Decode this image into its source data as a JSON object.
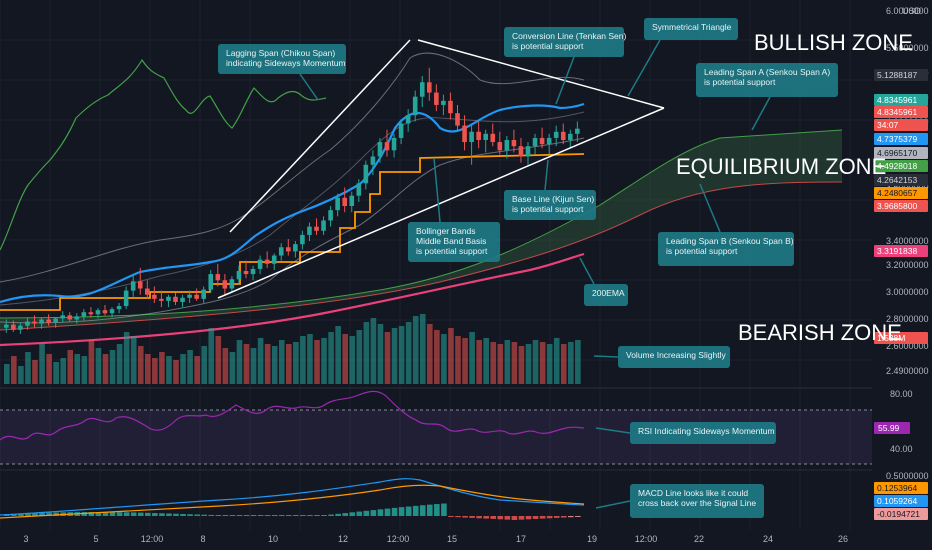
{
  "currency_label": "USD",
  "price_axis": [
    "6.0000000",
    "5.5000000",
    "5.0000000",
    "4.5000000",
    "4.0000000",
    "3.6000000",
    "3.4000000",
    "3.2000000",
    "3.0000000",
    "2.8000000",
    "2.6000000",
    "2.4900000"
  ],
  "rsi_axis": [
    "80.00",
    "40.00"
  ],
  "macd_axis": [
    "0.5000000"
  ],
  "price_badges": [
    {
      "text": "5.1288187",
      "bg": "#2a2e39",
      "fg": "#d1d4dc"
    },
    {
      "text": "4.8345961",
      "bg": "#26a69a",
      "fg": "#ffffff"
    },
    {
      "text": "4.8345961",
      "bg": "#ef5350",
      "fg": "#ffffff"
    },
    {
      "text": "34:07",
      "bg": "#ef5350",
      "fg": "#ffffff"
    },
    {
      "text": "4.7375379",
      "bg": "#2196f3",
      "fg": "#ffffff"
    },
    {
      "text": "4.6965170",
      "bg": "#b2b5be",
      "fg": "#131722"
    },
    {
      "text": "4.4928018",
      "bg": "#43a047",
      "fg": "#ffffff"
    },
    {
      "text": "4.2642153",
      "bg": "#2a2e39",
      "fg": "#d1d4dc"
    },
    {
      "text": "4.2480657",
      "bg": "#ff9800",
      "fg": "#131722"
    },
    {
      "text": "3.9685800",
      "bg": "#ef5350",
      "fg": "#ffffff"
    },
    {
      "text": "3.3191838",
      "bg": "#ec407a",
      "fg": "#ffffff"
    },
    {
      "text": "1.538M",
      "bg": "#ef5350",
      "fg": "#ffffff"
    }
  ],
  "rsi_badge": {
    "text": "55.99",
    "bg": "#9c27b0",
    "fg": "#ffffff"
  },
  "macd_badges": [
    {
      "text": "0.1253964",
      "bg": "#ff9800",
      "fg": "#131722"
    },
    {
      "text": "0.1059264",
      "bg": "#2196f3",
      "fg": "#ffffff"
    },
    {
      "text": "-0.0194721",
      "bg": "#ef9a9a",
      "fg": "#131722"
    }
  ],
  "time_axis": [
    "3",
    "5",
    "12:00",
    "8",
    "10",
    "12",
    "12:00",
    "15",
    "17",
    "19",
    "12:00",
    "22",
    "24",
    "26"
  ],
  "zones": {
    "bullish": "BULLISH ZONE",
    "equilibrium": "EQUILIBRIUM ZONE",
    "bearish": "BEARISH ZONE"
  },
  "callouts": [
    {
      "lines": [
        "Lagging Span (Chikou Span)",
        "indicating Sideways Momentum"
      ]
    },
    {
      "lines": [
        "Conversion Line (Tenkan Sen)",
        "is potential support"
      ]
    },
    {
      "lines": [
        "Symmetrical Triangle"
      ]
    },
    {
      "lines": [
        "Leading Span A (Senkou Span A)",
        "is potential support"
      ]
    },
    {
      "lines": [
        "Base Line (Kijun Sen)",
        "is potential support"
      ]
    },
    {
      "lines": [
        "Bollinger Bands",
        "Middle Band Basis",
        "is potential support"
      ]
    },
    {
      "lines": [
        "Leading Span B (Senkou Span B)",
        "is potential support"
      ]
    },
    {
      "lines": [
        "200EMA"
      ]
    },
    {
      "lines": [
        "Volume Increasing Slightly"
      ]
    },
    {
      "lines": [
        "RSI Indicating Sideways Momentum"
      ]
    },
    {
      "lines": [
        "MACD Line looks like it could",
        "cross back over the Signal Line"
      ]
    }
  ],
  "colors": {
    "up": "#26a69a",
    "down": "#ef5350",
    "tenkan": "#2196f3",
    "kijun": "#ff9800",
    "ema200": "#ec407a",
    "chikou": "#43a047",
    "rsi": "#9c27b0",
    "callout": "#1e7a85"
  },
  "chart_data": {
    "type": "candlestick",
    "indicators": [
      "Ichimoku Cloud",
      "Bollinger Bands",
      "200 EMA",
      "Volume",
      "RSI",
      "MACD"
    ],
    "ohlc": [
      [
        2.9,
        2.98,
        2.85,
        2.93
      ],
      [
        2.93,
        2.97,
        2.86,
        2.88
      ],
      [
        2.88,
        2.95,
        2.84,
        2.92
      ],
      [
        2.92,
        3.0,
        2.88,
        2.96
      ],
      [
        2.96,
        3.02,
        2.9,
        2.94
      ],
      [
        2.94,
        3.0,
        2.89,
        2.98
      ],
      [
        2.98,
        3.03,
        2.92,
        2.95
      ],
      [
        2.95,
        3.0,
        2.9,
        2.99
      ],
      [
        2.99,
        3.06,
        2.95,
        3.02
      ],
      [
        3.02,
        3.05,
        2.96,
        2.98
      ],
      [
        2.98,
        3.04,
        2.94,
        3.01
      ],
      [
        3.01,
        3.08,
        2.97,
        3.05
      ],
      [
        3.05,
        3.1,
        3.0,
        3.03
      ],
      [
        3.03,
        3.09,
        2.99,
        3.07
      ],
      [
        3.07,
        3.12,
        3.02,
        3.04
      ],
      [
        3.04,
        3.1,
        3.0,
        3.08
      ],
      [
        3.08,
        3.14,
        3.04,
        3.11
      ],
      [
        3.11,
        3.3,
        3.08,
        3.26
      ],
      [
        3.26,
        3.42,
        3.2,
        3.35
      ],
      [
        3.35,
        3.48,
        3.22,
        3.28
      ],
      [
        3.28,
        3.36,
        3.18,
        3.22
      ],
      [
        3.22,
        3.3,
        3.14,
        3.18
      ],
      [
        3.18,
        3.26,
        3.1,
        3.16
      ],
      [
        3.16,
        3.22,
        3.1,
        3.2
      ],
      [
        3.2,
        3.24,
        3.12,
        3.15
      ],
      [
        3.15,
        3.22,
        3.1,
        3.19
      ],
      [
        3.19,
        3.26,
        3.14,
        3.22
      ],
      [
        3.22,
        3.28,
        3.16,
        3.18
      ],
      [
        3.18,
        3.3,
        3.14,
        3.27
      ],
      [
        3.27,
        3.46,
        3.24,
        3.42
      ],
      [
        3.42,
        3.52,
        3.3,
        3.36
      ],
      [
        3.36,
        3.42,
        3.22,
        3.28
      ],
      [
        3.28,
        3.4,
        3.24,
        3.37
      ],
      [
        3.37,
        3.5,
        3.32,
        3.45
      ],
      [
        3.45,
        3.55,
        3.38,
        3.42
      ],
      [
        3.42,
        3.5,
        3.36,
        3.47
      ],
      [
        3.47,
        3.6,
        3.42,
        3.56
      ],
      [
        3.56,
        3.64,
        3.48,
        3.52
      ],
      [
        3.52,
        3.62,
        3.46,
        3.6
      ],
      [
        3.6,
        3.72,
        3.55,
        3.68
      ],
      [
        3.68,
        3.76,
        3.6,
        3.64
      ],
      [
        3.64,
        3.74,
        3.58,
        3.71
      ],
      [
        3.71,
        3.84,
        3.66,
        3.8
      ],
      [
        3.8,
        3.92,
        3.74,
        3.88
      ],
      [
        3.88,
        3.96,
        3.8,
        3.84
      ],
      [
        3.84,
        3.98,
        3.8,
        3.94
      ],
      [
        3.94,
        4.08,
        3.88,
        4.04
      ],
      [
        4.04,
        4.2,
        3.98,
        4.16
      ],
      [
        4.16,
        4.26,
        4.02,
        4.08
      ],
      [
        4.08,
        4.22,
        4.02,
        4.18
      ],
      [
        4.18,
        4.34,
        4.12,
        4.3
      ],
      [
        4.3,
        4.52,
        4.24,
        4.48
      ],
      [
        4.48,
        4.62,
        4.38,
        4.56
      ],
      [
        4.56,
        4.74,
        4.5,
        4.7
      ],
      [
        4.7,
        4.82,
        4.56,
        4.62
      ],
      [
        4.62,
        4.78,
        4.55,
        4.74
      ],
      [
        4.74,
        4.92,
        4.68,
        4.88
      ],
      [
        4.88,
        5.02,
        4.8,
        4.96
      ],
      [
        4.96,
        5.2,
        4.9,
        5.14
      ],
      [
        5.14,
        5.34,
        5.04,
        5.28
      ],
      [
        5.28,
        5.42,
        5.1,
        5.18
      ],
      [
        5.18,
        5.26,
        5.0,
        5.06
      ],
      [
        5.06,
        5.16,
        4.96,
        5.1
      ],
      [
        5.1,
        5.18,
        4.92,
        4.98
      ],
      [
        4.98,
        5.06,
        4.8,
        4.86
      ],
      [
        4.86,
        4.96,
        4.62,
        4.7
      ],
      [
        4.7,
        4.86,
        4.48,
        4.8
      ],
      [
        4.8,
        4.9,
        4.64,
        4.72
      ],
      [
        4.72,
        4.82,
        4.6,
        4.78
      ],
      [
        4.78,
        4.88,
        4.66,
        4.7
      ],
      [
        4.7,
        4.8,
        4.58,
        4.62
      ],
      [
        4.62,
        4.76,
        4.54,
        4.72
      ],
      [
        4.72,
        4.82,
        4.6,
        4.66
      ],
      [
        4.66,
        4.74,
        4.5,
        4.56
      ],
      [
        4.56,
        4.7,
        4.48,
        4.66
      ],
      [
        4.66,
        4.78,
        4.58,
        4.74
      ],
      [
        4.74,
        4.84,
        4.64,
        4.68
      ],
      [
        4.68,
        4.78,
        4.58,
        4.74
      ],
      [
        4.74,
        4.86,
        4.66,
        4.8
      ],
      [
        4.8,
        4.88,
        4.68,
        4.72
      ],
      [
        4.72,
        4.82,
        4.64,
        4.78
      ],
      [
        4.78,
        4.9,
        4.7,
        4.83
      ]
    ]
  }
}
